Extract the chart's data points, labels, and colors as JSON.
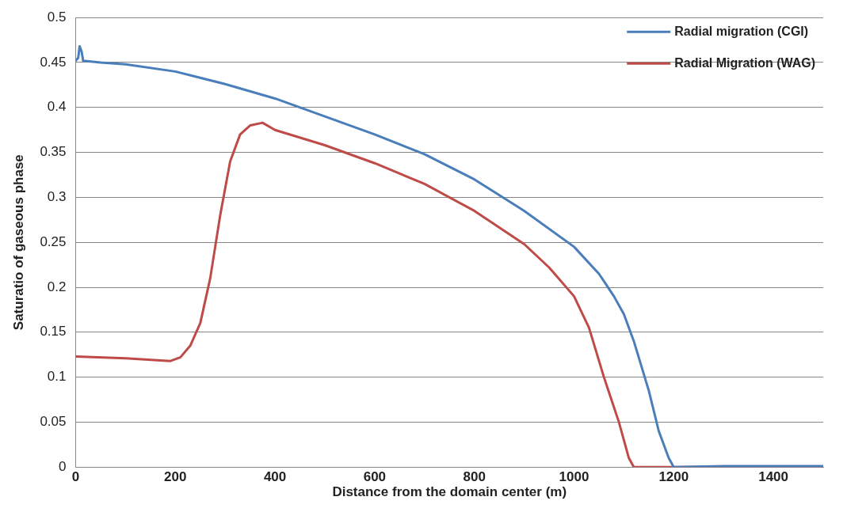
{
  "chart_data": {
    "type": "line",
    "xlabel": "Distance from the domain center (m)",
    "ylabel": "Saturatio of gaseous phase",
    "xlim": [
      0,
      1500
    ],
    "xticks": [
      0,
      200,
      400,
      600,
      800,
      1000,
      1200,
      1400
    ],
    "ylim": [
      0,
      0.5
    ],
    "yticks": [
      0,
      0.05,
      0.1,
      0.15,
      0.2,
      0.25,
      0.3,
      0.35,
      0.4,
      0.45,
      0.5
    ],
    "grid": "y",
    "legend": "top right",
    "marker": "none",
    "line_style": "solid",
    "series": [
      {
        "name": "Radial migration (CGI)",
        "color": "#4a7ebb",
        "x": [
          0,
          5,
          8,
          12,
          15,
          50,
          100,
          200,
          300,
          400,
          500,
          600,
          700,
          800,
          900,
          1000,
          1050,
          1080,
          1100,
          1120,
          1150,
          1170,
          1190,
          1200,
          1300,
          1500
        ],
        "values": [
          0.452,
          0.455,
          0.468,
          0.462,
          0.452,
          0.45,
          0.448,
          0.44,
          0.426,
          0.41,
          0.39,
          0.37,
          0.348,
          0.32,
          0.285,
          0.245,
          0.215,
          0.19,
          0.17,
          0.14,
          0.085,
          0.04,
          0.01,
          0,
          0.001,
          0.001
        ]
      },
      {
        "name": "Radial Migration (WAG)",
        "color": "#be4b48",
        "x": [
          0,
          100,
          190,
          210,
          230,
          250,
          270,
          290,
          310,
          330,
          350,
          375,
          400,
          500,
          600,
          700,
          800,
          900,
          950,
          1000,
          1030,
          1060,
          1090,
          1110,
          1120,
          1300,
          1500
        ],
        "values": [
          0.123,
          0.121,
          0.118,
          0.122,
          0.135,
          0.16,
          0.21,
          0.28,
          0.34,
          0.37,
          0.38,
          0.383,
          0.375,
          0.358,
          0.338,
          0.315,
          0.285,
          0.248,
          0.222,
          0.19,
          0.155,
          0.1,
          0.05,
          0.01,
          0,
          0,
          0
        ]
      }
    ]
  }
}
